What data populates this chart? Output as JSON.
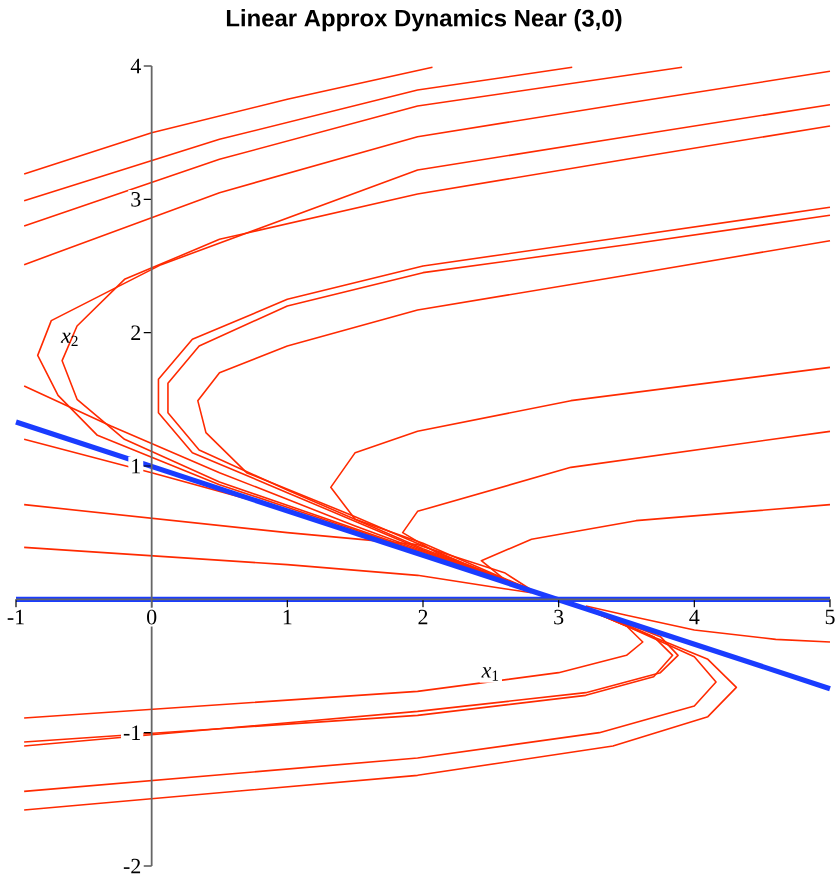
{
  "chart_data": {
    "type": "line",
    "title": "Linear Approx Dynamics Near (3,0)",
    "xlabel": "*x*$_{1}$",
    "ylabel": "*x*$_{2}$",
    "xlim": [
      -1,
      5
    ],
    "ylim": [
      -2,
      4
    ],
    "xticks": [
      -1,
      0,
      1,
      2,
      3,
      4,
      5
    ],
    "yticks": [
      -2,
      -1,
      1,
      2,
      3,
      4
    ],
    "grid": false,
    "marker": "none",
    "line_style": "solid",
    "series": [
      {
        "color": "#ff2a00",
        "x": [
          2.07,
          1.0,
          0,
          -0.94
        ],
        "values": [
          3.99,
          3.75,
          3.5,
          3.19
        ]
      },
      {
        "color": "#ff2a00",
        "x": [
          3.1,
          1.96,
          0.5,
          -0.94
        ],
        "values": [
          3.99,
          3.82,
          3.45,
          2.99
        ]
      },
      {
        "color": "#ff2a00",
        "x": [
          3.91,
          1.96,
          0.5,
          -0.94
        ],
        "values": [
          3.99,
          3.7,
          3.3,
          2.8
        ]
      },
      {
        "color": "#ff2a00",
        "x": [
          5,
          3.5,
          1.96,
          0.5,
          -0.94
        ],
        "values": [
          3.96,
          3.72,
          3.47,
          3.05,
          2.51
        ]
      },
      {
        "color": "#ff2a00",
        "x": [
          5,
          3.5,
          1.96,
          0.07,
          -0.74,
          -0.84,
          -0.69,
          -0.4,
          0.5,
          1.5,
          2.3,
          2.8
        ],
        "values": [
          3.71,
          3.47,
          3.22,
          2.51,
          2.09,
          1.83,
          1.53,
          1.23,
          0.86,
          0.52,
          0.24,
          0.07
        ]
      },
      {
        "color": "#ff2a00",
        "x": [
          5,
          3.5,
          1.96,
          0.5,
          -0.2,
          -0.55,
          -0.66,
          -0.55,
          -0.2,
          0.5,
          1.5,
          2.3,
          2.8
        ],
        "values": [
          3.55,
          3.3,
          3.04,
          2.7,
          2.4,
          2.05,
          1.79,
          1.5,
          1.2,
          0.88,
          0.53,
          0.25,
          0.07
        ]
      },
      {
        "color": "#ff2a00",
        "x": [
          5,
          3.5,
          2,
          1,
          0.3,
          0.05,
          0.05,
          0.3,
          1,
          2,
          2.8
        ],
        "values": [
          2.94,
          2.72,
          2.5,
          2.25,
          1.95,
          1.65,
          1.4,
          1.1,
          0.8,
          0.37,
          0.07
        ]
      },
      {
        "color": "#ff2a00",
        "x": [
          5,
          3.5,
          2,
          1,
          0.35,
          0.12,
          0.12,
          0.35,
          1,
          2,
          2.8
        ],
        "values": [
          2.88,
          2.66,
          2.45,
          2.2,
          1.9,
          1.62,
          1.4,
          1.12,
          0.82,
          0.38,
          0.07
        ]
      },
      {
        "color": "#ff2a00",
        "x": [
          5,
          3.5,
          1.96,
          1.0,
          0.5,
          0.34,
          0.4,
          0.7,
          1.5,
          2.3,
          2.8
        ],
        "values": [
          2.69,
          2.43,
          2.17,
          1.9,
          1.7,
          1.49,
          1.25,
          0.95,
          0.62,
          0.27,
          0.07
        ]
      },
      {
        "color": "#ff2a00",
        "x": [
          5,
          3.09,
          1.96,
          1.5,
          1.32,
          1.5,
          2.0,
          2.5,
          2.8
        ],
        "values": [
          1.74,
          1.49,
          1.26,
          1.1,
          0.84,
          0.6,
          0.42,
          0.2,
          0.07
        ]
      },
      {
        "color": "#ff2a00",
        "x": [
          5,
          3.09,
          1.96,
          1.85,
          2.1,
          2.6,
          2.8
        ],
        "values": [
          1.26,
          0.99,
          0.66,
          0.5,
          0.35,
          0.15,
          0.07
        ]
      },
      {
        "color": "#ff2a00",
        "x": [
          5,
          3.57,
          2.8,
          2.43,
          2.6,
          2.8
        ],
        "values": [
          0.71,
          0.59,
          0.45,
          0.29,
          0.15,
          0.07
        ]
      },
      {
        "color": "#ff2a00",
        "x": [
          -0.94,
          -0.3,
          0.5,
          1.5,
          2.3,
          2.8
        ],
        "values": [
          1.6,
          1.3,
          0.95,
          0.55,
          0.25,
          0.07
        ]
      },
      {
        "color": "#ff2a00",
        "x": [
          -0.94,
          0,
          1,
          2,
          2.8
        ],
        "values": [
          1.2,
          0.95,
          0.67,
          0.33,
          0.07
        ]
      },
      {
        "color": "#ff2a00",
        "x": [
          -0.94,
          1.0,
          1.96,
          2.6,
          2.8
        ],
        "values": [
          0.71,
          0.5,
          0.41,
          0.2,
          0.07
        ]
      },
      {
        "color": "#ff2a00",
        "x": [
          -0.94,
          1,
          1.96,
          2.6,
          2.8
        ],
        "values": [
          0.39,
          0.26,
          0.18,
          0.08,
          0.05
        ]
      },
      {
        "color": "#ff2a00",
        "x": [
          -0.94,
          1.96,
          3.0,
          3.5,
          3.62,
          3.5,
          3.2
        ],
        "values": [
          -0.89,
          -0.69,
          -0.55,
          -0.42,
          -0.32,
          -0.2,
          -0.07
        ]
      },
      {
        "color": "#ff2a00",
        "x": [
          -0.94,
          1.96,
          3.2,
          3.7,
          3.84,
          3.7,
          3.3,
          3.2
        ],
        "values": [
          -1.07,
          -0.87,
          -0.72,
          -0.58,
          -0.42,
          -0.28,
          -0.1,
          -0.07
        ]
      },
      {
        "color": "#ff2a00",
        "x": [
          -0.94,
          1.96,
          3.2,
          3.75,
          3.88,
          3.75,
          3.3,
          3.2
        ],
        "values": [
          -1.1,
          -0.84,
          -0.7,
          -0.55,
          -0.42,
          -0.28,
          -0.1,
          -0.07
        ]
      },
      {
        "color": "#ff2a00",
        "x": [
          -0.94,
          1.96,
          3.3,
          4.0,
          4.16,
          4.0,
          3.5,
          3.2
        ],
        "values": [
          -1.44,
          -1.19,
          -1.0,
          -0.8,
          -0.62,
          -0.43,
          -0.2,
          -0.07
        ]
      },
      {
        "color": "#ff2a00",
        "x": [
          -0.94,
          1.96,
          3.4,
          4.1,
          4.31,
          4.1,
          3.5,
          3.2
        ],
        "values": [
          -1.58,
          -1.32,
          -1.1,
          -0.88,
          -0.66,
          -0.45,
          -0.2,
          -0.07
        ]
      },
      {
        "color": "#ff2a00",
        "x": [
          5,
          4.6,
          4.0,
          3.5,
          3.2
        ],
        "values": [
          -0.32,
          -0.3,
          -0.23,
          -0.12,
          -0.05
        ]
      },
      {
        "color": "#1a3cff",
        "x": [
          -1,
          5
        ],
        "values": [
          0,
          0
        ]
      },
      {
        "color": "#1a3cff",
        "x": [
          -1,
          5
        ],
        "values": [
          1.33,
          -0.67
        ]
      }
    ]
  }
}
